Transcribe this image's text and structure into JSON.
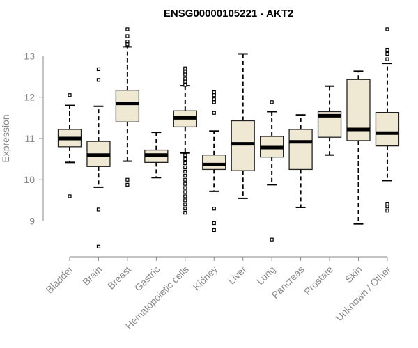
{
  "chart_data": {
    "type": "boxplot",
    "title": "ENSG00000105221 - AKT2",
    "xlabel": "",
    "ylabel": "Expression",
    "ylim": [
      8.3,
      13.75
    ],
    "yticks": [
      9,
      10,
      11,
      12,
      13
    ],
    "colors": {
      "box_fill": "#efe8d2",
      "box_stroke": "#222222",
      "median": "#000000",
      "axis": "#8a8a8a"
    },
    "categories": [
      "Bladder",
      "Brain",
      "Breast",
      "Gastric",
      "Hematopoietic cells",
      "Kidney",
      "Liver",
      "Lung",
      "Pancreas",
      "Prostate",
      "Skin",
      "Unknown / Other"
    ],
    "boxes": [
      {
        "name": "Bladder",
        "q1": 10.8,
        "median": 11.0,
        "q3": 11.22,
        "whisker_low": 10.42,
        "whisker_high": 11.8,
        "outliers": [
          12.05,
          9.6
        ]
      },
      {
        "name": "Brain",
        "q1": 10.32,
        "median": 10.6,
        "q3": 10.93,
        "whisker_low": 9.82,
        "whisker_high": 11.78,
        "outliers": [
          12.68,
          12.42,
          9.28,
          8.38
        ]
      },
      {
        "name": "Breast",
        "q1": 11.4,
        "median": 11.85,
        "q3": 12.17,
        "whisker_low": 10.45,
        "whisker_high": 13.22,
        "outliers": [
          13.65,
          13.48,
          13.35,
          13.28,
          10.0,
          9.88
        ]
      },
      {
        "name": "Gastric",
        "q1": 10.42,
        "median": 10.6,
        "q3": 10.72,
        "whisker_low": 10.05,
        "whisker_high": 11.15,
        "outliers": []
      },
      {
        "name": "Hematopoietic cells",
        "q1": 11.28,
        "median": 11.5,
        "q3": 11.67,
        "whisker_low": 10.65,
        "whisker_high": 12.28,
        "outliers": [
          12.7,
          12.62,
          12.55,
          12.45,
          12.38,
          12.3,
          10.6,
          10.5,
          10.4,
          10.3,
          10.2,
          10.1,
          10.0,
          9.9,
          9.8,
          9.7,
          9.6,
          9.5,
          9.4,
          9.3,
          9.2
        ]
      },
      {
        "name": "Kidney",
        "q1": 10.25,
        "median": 10.37,
        "q3": 10.6,
        "whisker_low": 9.72,
        "whisker_high": 11.18,
        "outliers": [
          12.12,
          12.05,
          11.95,
          11.88,
          11.62,
          9.3,
          8.95,
          8.78
        ]
      },
      {
        "name": "Liver",
        "q1": 10.22,
        "median": 10.87,
        "q3": 11.43,
        "whisker_low": 9.55,
        "whisker_high": 13.05,
        "outliers": []
      },
      {
        "name": "Lung",
        "q1": 10.55,
        "median": 10.78,
        "q3": 11.05,
        "whisker_low": 9.88,
        "whisker_high": 11.65,
        "outliers": [
          11.88,
          8.55
        ]
      },
      {
        "name": "Pancreas",
        "q1": 10.25,
        "median": 10.92,
        "q3": 11.22,
        "whisker_low": 9.33,
        "whisker_high": 11.57,
        "outliers": []
      },
      {
        "name": "Prostate",
        "q1": 11.03,
        "median": 11.55,
        "q3": 11.65,
        "whisker_low": 10.6,
        "whisker_high": 12.27,
        "outliers": []
      },
      {
        "name": "Skin",
        "q1": 10.95,
        "median": 11.22,
        "q3": 12.43,
        "whisker_low": 8.93,
        "whisker_high": 12.63,
        "outliers": []
      },
      {
        "name": "Unknown / Other",
        "q1": 10.82,
        "median": 11.13,
        "q3": 11.63,
        "whisker_low": 9.98,
        "whisker_high": 12.82,
        "outliers": [
          13.65,
          13.15,
          13.05,
          12.92,
          9.42,
          9.35,
          9.25
        ]
      }
    ]
  }
}
